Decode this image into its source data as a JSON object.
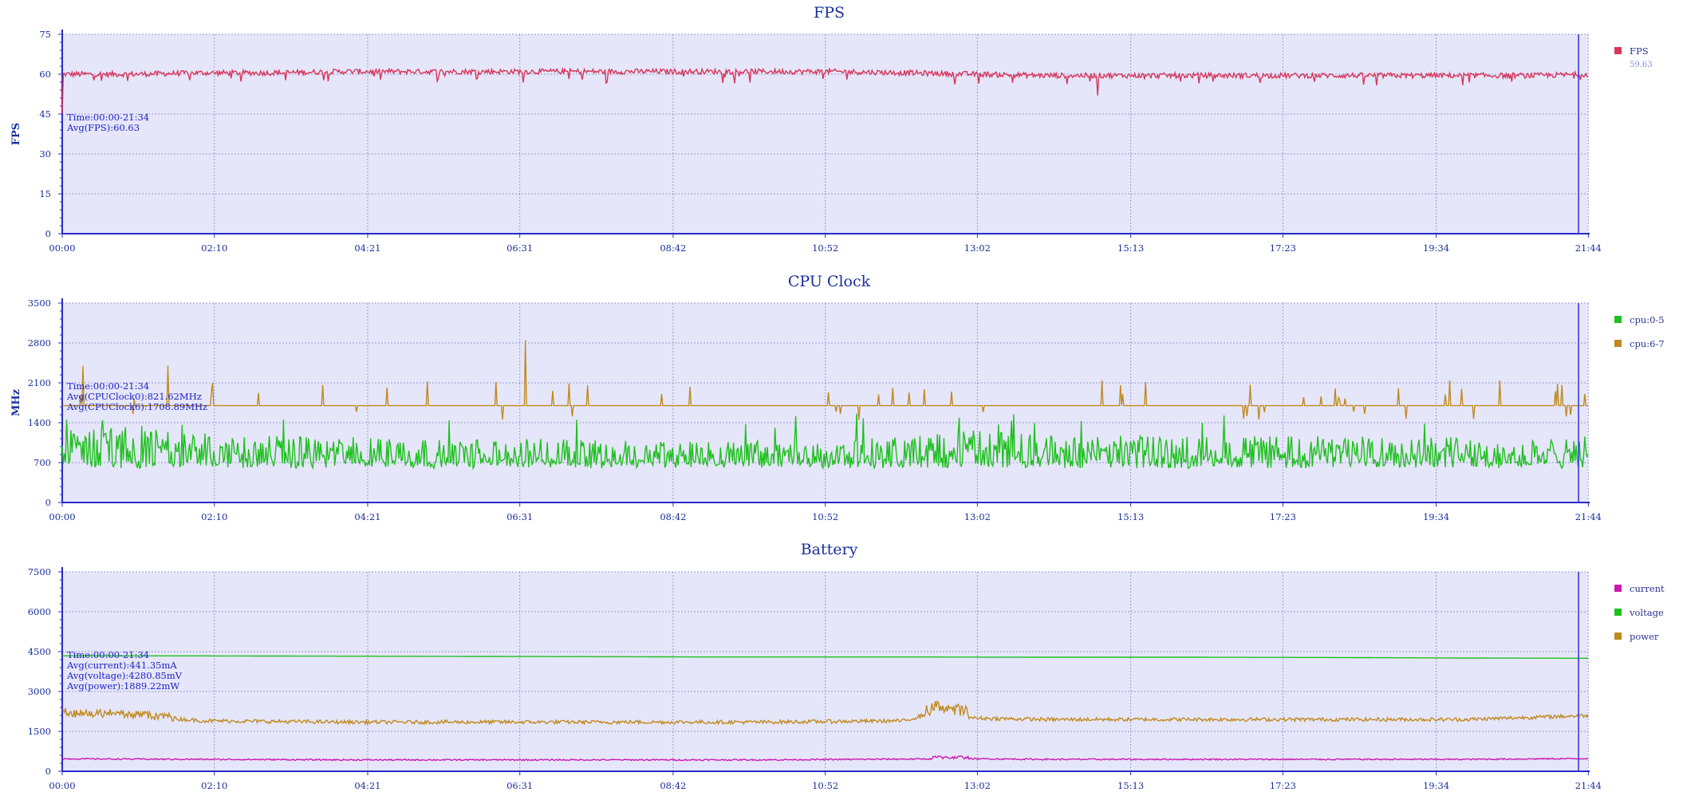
{
  "chart_data": [
    {
      "type": "line",
      "title": "FPS",
      "ylabel": "FPS",
      "xlabel": "",
      "ylim": [
        0,
        75
      ],
      "yticks": [
        "0",
        "15",
        "30",
        "45",
        "60",
        "75"
      ],
      "xticks": [
        "00:00",
        "02:10",
        "04:21",
        "06:31",
        "08:42",
        "10:52",
        "13:02",
        "15:13",
        "17:23",
        "19:34",
        "21:44"
      ],
      "x_range_minutes": [
        0,
        21.73
      ],
      "cursor_at": "21:34",
      "grid": true,
      "legend_position": "right",
      "annotation": [
        "Time:00:00-21:34",
        "Avg(FPS):60.63"
      ],
      "series": [
        {
          "name": "FPS",
          "color": "#d8365a",
          "legend_value": "59.63",
          "x": [
            "00:00",
            "01:00",
            "02:00",
            "03:00",
            "04:00",
            "05:00",
            "06:00",
            "07:00",
            "08:00",
            "09:00",
            "10:00",
            "11:00",
            "12:00",
            "13:00",
            "14:00",
            "15:00",
            "16:00",
            "17:00",
            "18:00",
            "19:00",
            "20:00",
            "21:00",
            "21:44"
          ],
          "y": [
            60,
            60,
            60.5,
            60.5,
            61,
            61,
            61,
            61,
            61,
            61,
            61,
            61,
            60.5,
            60,
            59.5,
            59.5,
            59.5,
            59.5,
            59.5,
            59.5,
            59.5,
            59.5,
            60
          ],
          "notes_min_dip": 52
        }
      ]
    },
    {
      "type": "line",
      "title": "CPU Clock",
      "ylabel": "MHz",
      "xlabel": "",
      "ylim": [
        0,
        3500
      ],
      "yticks": [
        "0",
        "700",
        "1400",
        "2100",
        "2800",
        "3500"
      ],
      "xticks": [
        "00:00",
        "02:10",
        "04:21",
        "06:31",
        "08:42",
        "10:52",
        "13:02",
        "15:13",
        "17:23",
        "19:34",
        "21:44"
      ],
      "x_range_minutes": [
        0,
        21.73
      ],
      "cursor_at": "21:34",
      "grid": true,
      "legend_position": "right",
      "annotation": [
        "Time:00:00-21:34",
        "Avg(CPUClock0):821.62MHz",
        "Avg(CPUClock6):1708.89MHz"
      ],
      "series": [
        {
          "name": "cpu:0-5",
          "color": "#1ec01e",
          "x": [
            "00:00",
            "01:00",
            "02:00",
            "03:00",
            "04:00",
            "05:00",
            "06:00",
            "07:00",
            "08:00",
            "09:00",
            "10:00",
            "11:00",
            "12:00",
            "13:00",
            "14:00",
            "15:00",
            "16:00",
            "17:00",
            "18:00",
            "19:00",
            "20:00",
            "21:00",
            "21:44"
          ],
          "y": [
            950,
            1050,
            900,
            850,
            850,
            820,
            800,
            800,
            800,
            780,
            780,
            780,
            850,
            950,
            880,
            900,
            850,
            850,
            850,
            850,
            850,
            780,
            850
          ]
        },
        {
          "name": "cpu:6-7",
          "color": "#c08a1e",
          "x": [
            "00:00",
            "01:00",
            "02:00",
            "03:00",
            "04:00",
            "05:00",
            "06:00",
            "07:00",
            "08:00",
            "09:00",
            "10:00",
            "11:00",
            "12:00",
            "13:00",
            "14:00",
            "15:00",
            "16:00",
            "17:00",
            "18:00",
            "19:00",
            "20:00",
            "21:00",
            "21:44"
          ],
          "y": [
            1700,
            1700,
            1700,
            1700,
            1700,
            1700,
            1700,
            1700,
            1700,
            1700,
            1700,
            1700,
            1700,
            1700,
            1700,
            1700,
            1700,
            1700,
            1700,
            1700,
            1700,
            1700,
            1700
          ],
          "notes_max_spike": 2850
        }
      ]
    },
    {
      "type": "line",
      "title": "Battery",
      "ylabel": "",
      "xlabel": "",
      "ylim": [
        0,
        7500
      ],
      "yticks": [
        "0",
        "1500",
        "3000",
        "4500",
        "6000",
        "7500"
      ],
      "xticks": [
        "00:00",
        "02:10",
        "04:21",
        "06:31",
        "08:42",
        "10:52",
        "13:02",
        "15:13",
        "17:23",
        "19:34",
        "21:44"
      ],
      "x_range_minutes": [
        0,
        21.73
      ],
      "cursor_at": "21:34",
      "grid": true,
      "legend_position": "right",
      "annotation": [
        "Time:00:00-21:34",
        "Avg(current):441.35mA",
        "Avg(voltage):4280.85mV",
        "Avg(power):1889.22mW"
      ],
      "series": [
        {
          "name": "current",
          "color": "#cc18b0",
          "x": [
            "00:00",
            "02:00",
            "04:00",
            "06:00",
            "08:00",
            "10:00",
            "12:00",
            "13:00",
            "14:00",
            "16:00",
            "18:00",
            "20:00",
            "21:44"
          ],
          "y": [
            470,
            450,
            430,
            430,
            430,
            430,
            460,
            470,
            450,
            450,
            450,
            450,
            480
          ]
        },
        {
          "name": "voltage",
          "color": "#1ec01e",
          "x": [
            "00:00",
            "02:00",
            "04:00",
            "06:00",
            "08:00",
            "09:00",
            "10:00",
            "12:00",
            "14:00",
            "16:00",
            "18:00",
            "20:00",
            "21:44"
          ],
          "y": [
            4340,
            4340,
            4330,
            4320,
            4310,
            4300,
            4300,
            4300,
            4290,
            4290,
            4280,
            4260,
            4250
          ]
        },
        {
          "name": "power",
          "color": "#c08a1e",
          "x": [
            "00:00",
            "01:00",
            "02:00",
            "04:00",
            "06:00",
            "08:00",
            "10:00",
            "12:00",
            "12:30",
            "13:00",
            "14:00",
            "16:00",
            "18:00",
            "20:00",
            "21:44"
          ],
          "y": [
            2150,
            2100,
            1900,
            1850,
            1850,
            1850,
            1850,
            1900,
            2300,
            2000,
            1950,
            1950,
            1950,
            1950,
            2100
          ]
        }
      ]
    }
  ]
}
